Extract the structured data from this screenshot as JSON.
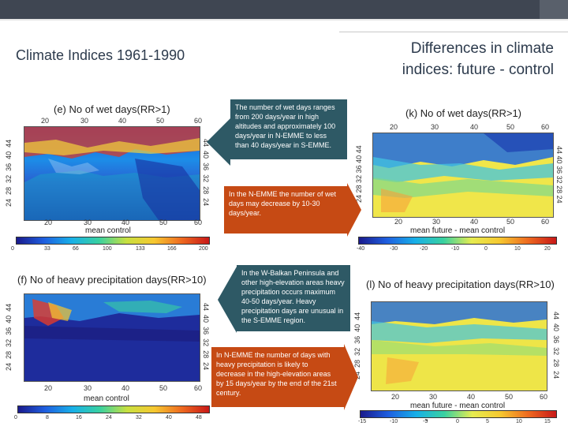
{
  "slide": {
    "title_left": "Climate Indices 1961-1990",
    "title_right_line1": "Differences in climate",
    "title_right_line2": "indices: future - control",
    "page_number": "▪"
  },
  "panels": {
    "e": {
      "title": "(e) No of wet days(RR>1)",
      "xticks": [
        "20",
        "30",
        "40",
        "50",
        "60"
      ],
      "yticks_left": [
        "24",
        "28",
        "32",
        "36",
        "40",
        "44"
      ],
      "yticks_right": [
        "44",
        "40",
        "36",
        "32",
        "28",
        "24"
      ],
      "caption": "mean control",
      "cbar_ticks": [
        "0",
        "33",
        "66",
        "100",
        "133",
        "166",
        "200"
      ]
    },
    "k": {
      "title": "(k) No of wet days(RR>1)",
      "xticks": [
        "20",
        "30",
        "40",
        "50",
        "60"
      ],
      "yticks_left": [
        "24",
        "28",
        "32",
        "36",
        "40",
        "44"
      ],
      "yticks_right": [
        "44",
        "40",
        "36",
        "32",
        "28",
        "24"
      ],
      "caption": "mean future - mean control",
      "cbar_ticks": [
        "-40",
        "-30",
        "-20",
        "-10",
        "0",
        "10",
        "20"
      ]
    },
    "f": {
      "title": "(f) No of heavy precipitation days(RR>10)",
      "xticks": [
        "20",
        "30",
        "40",
        "50",
        "60"
      ],
      "yticks_left": [
        "24",
        "28",
        "32",
        "36",
        "40",
        "44"
      ],
      "yticks_right": [
        "44",
        "40",
        "36",
        "32",
        "28",
        "24"
      ],
      "caption": "mean control",
      "cbar_ticks": [
        "0",
        "8",
        "16",
        "24",
        "32",
        "40",
        "48"
      ]
    },
    "l": {
      "title": "(l) No of heavy precipitation days(RR>10)",
      "xticks": [
        "20",
        "30",
        "40",
        "50",
        "60"
      ],
      "yticks_left": [
        "24",
        "28",
        "32",
        "36",
        "40",
        "44"
      ],
      "yticks_right": [
        "44",
        "40",
        "36",
        "32",
        "28",
        "24"
      ],
      "caption": "mean future - mean control",
      "cbar_ticks": [
        "-15",
        "-10",
        "-5",
        "0",
        "5",
        "10",
        "15"
      ]
    }
  },
  "callouts": {
    "wet_control": "The number of wet days ranges from 200 days/year in high altitudes and approximately 100 days/year in N-EMME to less than 40 days/year in S-EMME.",
    "wet_future": "In the N-EMME the number of wet days may decrease by 10-30 days/year.",
    "heavy_control": "In the W-Balkan Peninsula and other high-elevation areas heavy precipitation occurs maximum 40-50 days/year. Heavy precipitation days are unusual in the S-EMME region.",
    "heavy_future": "In N-EMME the number of days with heavy precipitation is likely to decrease in the high-elevation areas by 15 days/year by the end of the 21st century."
  },
  "colors": {
    "callout_teal": "#2e5965",
    "callout_orange": "#c64a14",
    "title_text": "#2d3b4d"
  }
}
